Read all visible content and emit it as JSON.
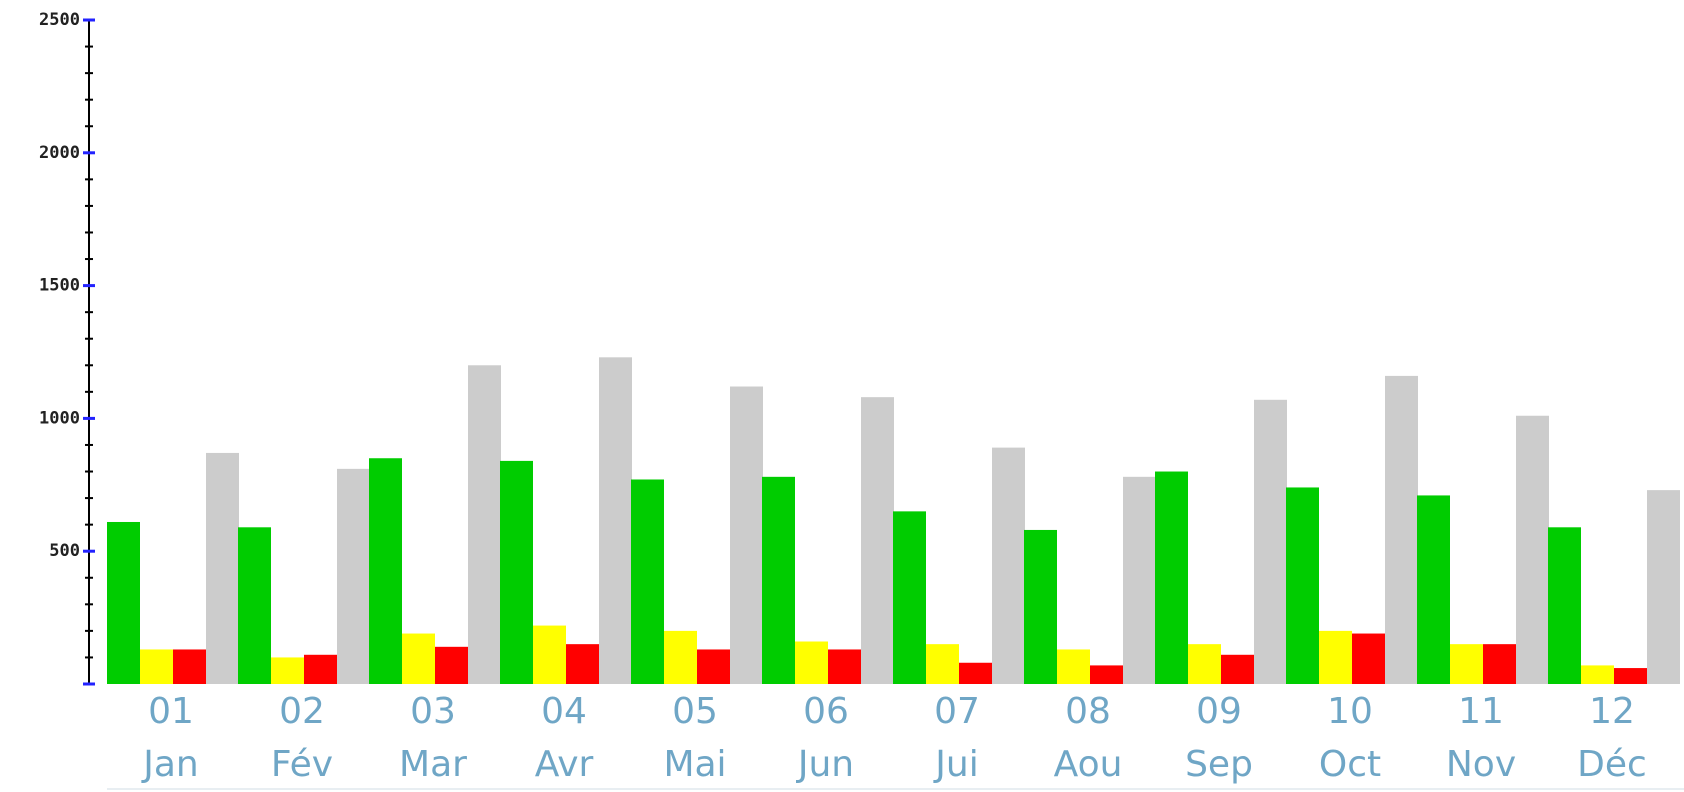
{
  "chart_data": {
    "type": "bar",
    "categories": [
      "01",
      "02",
      "03",
      "04",
      "05",
      "06",
      "07",
      "08",
      "09",
      "10",
      "11",
      "12"
    ],
    "category_names": [
      "Jan",
      "Fév",
      "Mar",
      "Avr",
      "Mai",
      "Jun",
      "Jui",
      "Aou",
      "Sep",
      "Oct",
      "Nov",
      "Déc"
    ],
    "series": [
      {
        "color": "#00cc00",
        "values": [
          610,
          590,
          850,
          840,
          770,
          780,
          650,
          580,
          800,
          740,
          710,
          590
        ]
      },
      {
        "color": "#ffff00",
        "values": [
          130,
          100,
          190,
          220,
          200,
          160,
          150,
          130,
          150,
          200,
          150,
          70
        ]
      },
      {
        "color": "#ff0000",
        "values": [
          130,
          110,
          140,
          150,
          130,
          130,
          80,
          70,
          110,
          190,
          150,
          60
        ]
      },
      {
        "color": "#cccccc",
        "values": [
          870,
          810,
          1200,
          1230,
          1120,
          1080,
          890,
          780,
          1070,
          1160,
          1010,
          730
        ]
      }
    ],
    "ylim": [
      0,
      2500
    ],
    "yticks": [
      0,
      500,
      1000,
      1500,
      2000,
      2500
    ],
    "yminorticks": [
      100,
      200,
      300,
      400,
      600,
      700,
      800,
      900,
      1100,
      1200,
      1300,
      1400,
      1600,
      1700,
      1800,
      1900,
      2100,
      2200,
      2300,
      2400
    ],
    "grid": false
  }
}
